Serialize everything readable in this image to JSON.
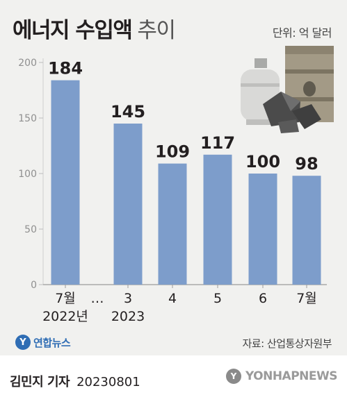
{
  "header": {
    "title_bold": "에너지 수입액",
    "title_light": "추이",
    "unit": "단위: 억 달러"
  },
  "chart_data": {
    "type": "bar",
    "title": "에너지 수입액 추이",
    "categories": [
      "7월",
      "3",
      "4",
      "5",
      "6",
      "7월"
    ],
    "year_labels": [
      "2022년",
      "2023"
    ],
    "gap_marker": "…",
    "values": [
      184,
      145,
      109,
      117,
      100,
      98
    ],
    "data_labels": [
      "184",
      "145",
      "109",
      "117",
      "100",
      "98"
    ],
    "ylim": [
      0,
      200
    ],
    "yticks": [
      0,
      50,
      100,
      150,
      200
    ],
    "grid": false,
    "bar_color": "#7d9dcb"
  },
  "footer": {
    "logo_text": "연합뉴스",
    "source": "자료: 산업통상자원부",
    "reporter": "김민지 기자",
    "date": "20230801",
    "wire": "YONHAPNEWS"
  },
  "icons": {
    "illustration": [
      "gas-cylinder-icon",
      "coal-icon",
      "oil-barrel-icon"
    ]
  }
}
